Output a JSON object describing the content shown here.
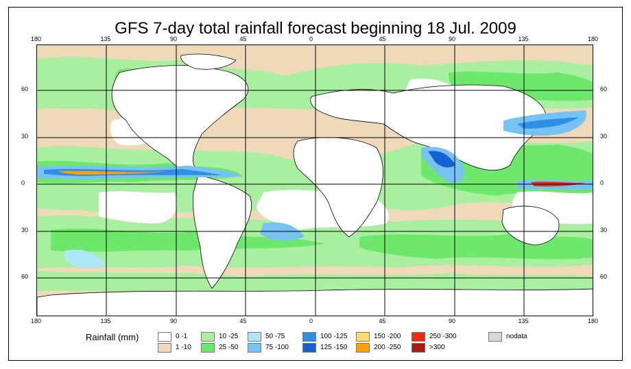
{
  "title": "GFS 7-day total rainfall forecast beginning 18 Jul. 2009",
  "axes": {
    "lon_ticks": [
      "180",
      "135",
      "90",
      "45",
      "0",
      "45",
      "90",
      "135",
      "180"
    ],
    "lat_ticks": [
      "60",
      "30",
      "0",
      "30",
      "60"
    ]
  },
  "legend": {
    "title": "Rainfall (mm)",
    "items": [
      {
        "label": "0 -1",
        "color": "#ffffff"
      },
      {
        "label": "1 -10",
        "color": "#efd9b8"
      },
      {
        "label": "10 -25",
        "color": "#a8f0a0"
      },
      {
        "label": "25 -50",
        "color": "#6ee86a"
      },
      {
        "label": "50 -75",
        "color": "#aee8f8"
      },
      {
        "label": "75 -100",
        "color": "#77c2f4"
      },
      {
        "label": "100 -125",
        "color": "#2f8ee6"
      },
      {
        "label": "125 -150",
        "color": "#1462d2"
      },
      {
        "label": "150 -200",
        "color": "#ffdc6c"
      },
      {
        "label": "200 -250",
        "color": "#ffa000"
      },
      {
        "label": "250 -300",
        "color": "#ee2a10"
      },
      {
        "label": ">300",
        "color": "#a81c14"
      },
      {
        "label": "nodata",
        "color": "#d8d8d8"
      }
    ]
  }
}
